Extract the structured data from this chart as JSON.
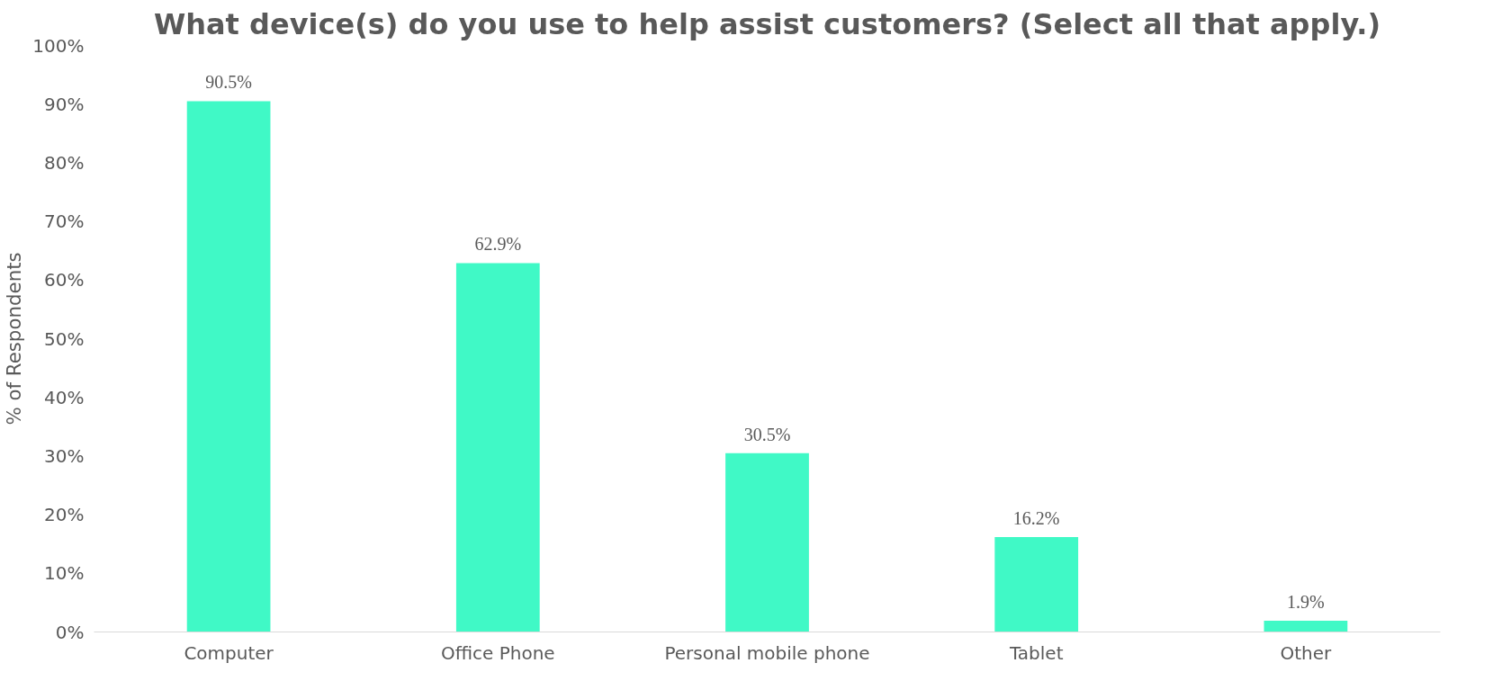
{
  "chart_data": {
    "type": "bar",
    "title": "What device(s) do you use to help assist customers? (Select all that apply.)",
    "ylabel": "% of Respondents",
    "categories": [
      "Computer",
      "Office Phone",
      "Personal mobile phone",
      "Tablet",
      "Other"
    ],
    "values": [
      90.5,
      62.9,
      30.5,
      16.2,
      1.9
    ],
    "value_labels": [
      "90.5%",
      "62.9%",
      "30.5%",
      "16.2%",
      "1.9%"
    ],
    "color": "#40f9c6",
    "ylim": [
      0,
      100
    ],
    "yticks": [
      {
        "value": 0,
        "label": "0%"
      },
      {
        "value": 10,
        "label": "10%"
      },
      {
        "value": 20,
        "label": "20%"
      },
      {
        "value": 30,
        "label": "30%"
      },
      {
        "value": 40,
        "label": "40%"
      },
      {
        "value": 50,
        "label": "50%"
      },
      {
        "value": 60,
        "label": "60%"
      },
      {
        "value": 70,
        "label": "70%"
      },
      {
        "value": 80,
        "label": "80%"
      },
      {
        "value": 90,
        "label": "90%"
      },
      {
        "value": 100,
        "label": "100%"
      }
    ],
    "grid": false
  }
}
